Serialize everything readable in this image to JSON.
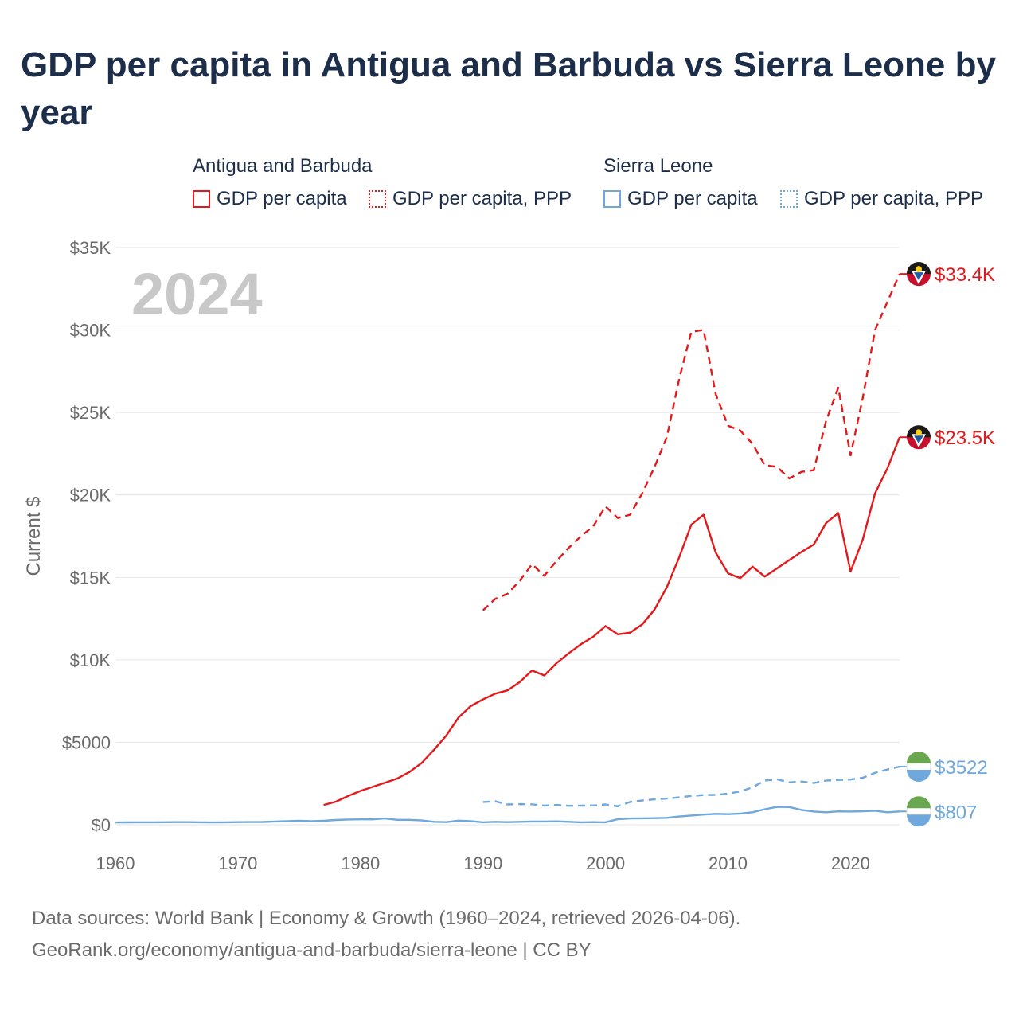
{
  "title": "GDP per capita in Antigua and Barbuda vs Sierra Leone by year",
  "legend": {
    "groups": [
      {
        "title": "Antigua and Barbuda",
        "items": [
          "GDP per capita",
          "GDP per capita, PPP"
        ]
      },
      {
        "title": "Sierra Leone",
        "items": [
          "GDP per capita",
          "GDP per capita, PPP"
        ]
      }
    ]
  },
  "footer": {
    "line1": "Data sources: World Bank | Economy & Growth (1960–2024, retrieved 2026-04-06).",
    "line2": "GeoRank.org/economy/antigua-and-barbuda/sierra-leone | CC BY"
  },
  "colors": {
    "antigua": "#e31a1c",
    "sierra": "#6fa8dc",
    "grid": "#e6e6e6",
    "axis_text": "#6b6b6b",
    "year_text": "#c8c8c8"
  },
  "chart_data": {
    "type": "line",
    "year_label": "2024",
    "ylabel": "Current $",
    "xlim": [
      1960,
      2024
    ],
    "ylim": [
      0,
      35000
    ],
    "x_ticks": [
      1960,
      1970,
      1980,
      1990,
      2000,
      2010,
      2020
    ],
    "y_ticks": [
      {
        "value": 0,
        "label": "$0"
      },
      {
        "value": 5000,
        "label": "$5000"
      },
      {
        "value": 10000,
        "label": "$10K"
      },
      {
        "value": 15000,
        "label": "$15K"
      },
      {
        "value": 20000,
        "label": "$20K"
      },
      {
        "value": 25000,
        "label": "$25K"
      },
      {
        "value": 30000,
        "label": "$30K"
      },
      {
        "value": 35000,
        "label": "$35K"
      }
    ],
    "series": [
      {
        "name": "Antigua and Barbuda GDP per capita",
        "country": "antigua",
        "dash": "solid",
        "end_label": "$23.5K",
        "x": [
          1977,
          1978,
          1979,
          1980,
          1981,
          1982,
          1983,
          1984,
          1985,
          1986,
          1987,
          1988,
          1989,
          1990,
          1991,
          1992,
          1993,
          1994,
          1995,
          1996,
          1997,
          1998,
          1999,
          2000,
          2001,
          2002,
          2003,
          2004,
          2005,
          2006,
          2007,
          2008,
          2009,
          2010,
          2011,
          2012,
          2013,
          2014,
          2015,
          2016,
          2017,
          2018,
          2019,
          2020,
          2021,
          2022,
          2023,
          2024
        ],
        "values": [
          1200,
          1400,
          1750,
          2050,
          2300,
          2550,
          2800,
          3200,
          3750,
          4550,
          5400,
          6500,
          7200,
          7600,
          7950,
          8150,
          8650,
          9350,
          9050,
          9800,
          10400,
          10950,
          11400,
          12050,
          11550,
          11650,
          12150,
          13050,
          14400,
          16200,
          18200,
          18800,
          16500,
          15250,
          14950,
          15650,
          15050,
          15550,
          16050,
          16550,
          17000,
          18300,
          18900,
          15350,
          17300,
          20100,
          21600,
          23500
        ]
      },
      {
        "name": "Antigua and Barbuda GDP per capita, PPP",
        "country": "antigua",
        "dash": "dashed",
        "end_label": "$33.4K",
        "x": [
          1990,
          1991,
          1992,
          1993,
          1994,
          1995,
          1996,
          1997,
          1998,
          1999,
          2000,
          2001,
          2002,
          2003,
          2004,
          2005,
          2006,
          2007,
          2008,
          2009,
          2010,
          2011,
          2012,
          2013,
          2014,
          2015,
          2016,
          2017,
          2018,
          2019,
          2020,
          2021,
          2022,
          2023,
          2024
        ],
        "values": [
          13000,
          13700,
          14000,
          14800,
          15800,
          15100,
          16000,
          16800,
          17500,
          18100,
          19300,
          18600,
          18800,
          20100,
          21700,
          23500,
          27000,
          29900,
          30000,
          26100,
          24200,
          23900,
          23100,
          21800,
          21700,
          21000,
          21400,
          21500,
          24500,
          26500,
          22400,
          25900,
          30000,
          31700,
          33400
        ]
      },
      {
        "name": "Sierra Leone GDP per capita",
        "country": "sierra",
        "dash": "solid",
        "end_label": "$807",
        "x": [
          1960,
          1961,
          1962,
          1963,
          1964,
          1965,
          1966,
          1967,
          1968,
          1969,
          1970,
          1971,
          1972,
          1973,
          1974,
          1975,
          1976,
          1977,
          1978,
          1979,
          1980,
          1981,
          1982,
          1983,
          1984,
          1985,
          1986,
          1987,
          1988,
          1989,
          1990,
          1991,
          1992,
          1993,
          1994,
          1995,
          1996,
          1997,
          1998,
          1999,
          2000,
          2001,
          2002,
          2003,
          2004,
          2005,
          2006,
          2007,
          2008,
          2009,
          2010,
          2011,
          2012,
          2013,
          2014,
          2015,
          2016,
          2017,
          2018,
          2019,
          2020,
          2021,
          2022,
          2023,
          2024
        ],
        "values": [
          140,
          145,
          150,
          150,
          155,
          160,
          160,
          150,
          140,
          150,
          160,
          165,
          170,
          200,
          220,
          240,
          220,
          240,
          290,
          320,
          330,
          330,
          380,
          300,
          300,
          260,
          180,
          160,
          250,
          220,
          150,
          180,
          160,
          180,
          200,
          200,
          210,
          180,
          150,
          160,
          150,
          340,
          380,
          390,
          400,
          420,
          500,
          560,
          620,
          660,
          640,
          680,
          760,
          940,
          1080,
          1070,
          900,
          800,
          760,
          810,
          800,
          820,
          850,
          760,
          807
        ]
      },
      {
        "name": "Sierra Leone GDP per capita, PPP",
        "country": "sierra",
        "dash": "dashed",
        "end_label": "$3522",
        "x": [
          1990,
          1991,
          1992,
          1993,
          1994,
          1995,
          1996,
          1997,
          1998,
          1999,
          2000,
          2001,
          2002,
          2003,
          2004,
          2005,
          2006,
          2007,
          2008,
          2009,
          2010,
          2011,
          2012,
          2013,
          2014,
          2015,
          2016,
          2017,
          2018,
          2019,
          2020,
          2021,
          2022,
          2023,
          2024
        ],
        "values": [
          1380,
          1420,
          1230,
          1250,
          1240,
          1160,
          1200,
          1150,
          1160,
          1170,
          1230,
          1120,
          1380,
          1470,
          1540,
          1590,
          1660,
          1750,
          1800,
          1810,
          1890,
          2020,
          2270,
          2680,
          2750,
          2570,
          2620,
          2530,
          2680,
          2720,
          2740,
          2850,
          3150,
          3350,
          3522
        ]
      }
    ]
  }
}
